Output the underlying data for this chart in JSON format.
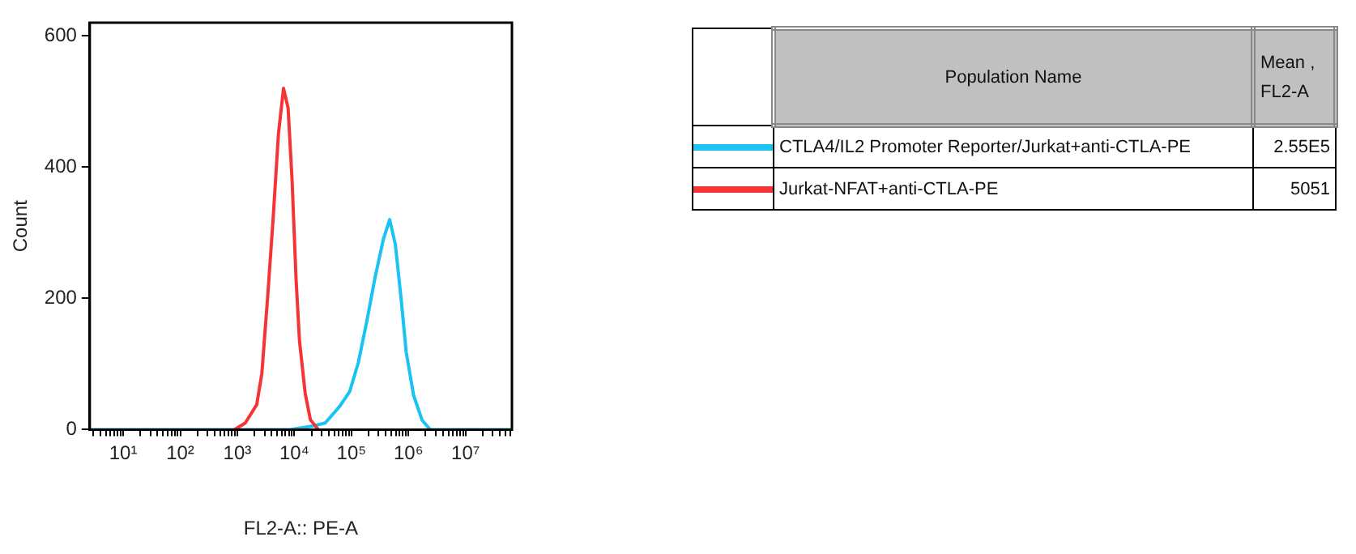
{
  "chart_data": {
    "type": "line",
    "xlabel": "FL2-A:: PE-A",
    "ylabel": "Count",
    "log": "x",
    "legend": "right",
    "marker": "none",
    "line_style": "solid",
    "xlim": [
      2.6,
      65000000
    ],
    "ylim": [
      0,
      620
    ],
    "xticks": [
      {
        "value": 10,
        "label": "10¹"
      },
      {
        "value": 100,
        "label": "10²"
      },
      {
        "value": 1000,
        "label": "10³"
      },
      {
        "value": 10000,
        "label": "10⁴"
      },
      {
        "value": 100000,
        "label": "10⁵"
      },
      {
        "value": 1000000,
        "label": "10⁶"
      },
      {
        "value": 10000000,
        "label": "10⁷"
      },
      {
        "value": 3,
        "label": null
      },
      {
        "value": 4,
        "label": null
      },
      {
        "value": 5,
        "label": null
      },
      {
        "value": 6,
        "label": null
      },
      {
        "value": 7,
        "label": null
      },
      {
        "value": 8,
        "label": null
      },
      {
        "value": 9,
        "label": null
      },
      {
        "value": 20,
        "label": null
      },
      {
        "value": 30,
        "label": null
      },
      {
        "value": 40,
        "label": null
      },
      {
        "value": 50,
        "label": null
      },
      {
        "value": 60,
        "label": null
      },
      {
        "value": 70,
        "label": null
      },
      {
        "value": 80,
        "label": null
      },
      {
        "value": 90,
        "label": null
      },
      {
        "value": 200,
        "label": null
      },
      {
        "value": 300,
        "label": null
      },
      {
        "value": 400,
        "label": null
      },
      {
        "value": 500,
        "label": null
      },
      {
        "value": 600,
        "label": null
      },
      {
        "value": 700,
        "label": null
      },
      {
        "value": 800,
        "label": null
      },
      {
        "value": 900,
        "label": null
      },
      {
        "value": 2000,
        "label": null
      },
      {
        "value": 3000,
        "label": null
      },
      {
        "value": 4000,
        "label": null
      },
      {
        "value": 5000,
        "label": null
      },
      {
        "value": 6000,
        "label": null
      },
      {
        "value": 7000,
        "label": null
      },
      {
        "value": 8000,
        "label": null
      },
      {
        "value": 9000,
        "label": null
      },
      {
        "value": 20000,
        "label": null
      },
      {
        "value": 30000,
        "label": null
      },
      {
        "value": 40000,
        "label": null
      },
      {
        "value": 50000,
        "label": null
      },
      {
        "value": 60000,
        "label": null
      },
      {
        "value": 70000,
        "label": null
      },
      {
        "value": 80000,
        "label": null
      },
      {
        "value": 90000,
        "label": null
      },
      {
        "value": 200000,
        "label": null
      },
      {
        "value": 300000,
        "label": null
      },
      {
        "value": 400000,
        "label": null
      },
      {
        "value": 500000,
        "label": null
      },
      {
        "value": 600000,
        "label": null
      },
      {
        "value": 700000,
        "label": null
      },
      {
        "value": 800000,
        "label": null
      },
      {
        "value": 900000,
        "label": null
      },
      {
        "value": 2000000,
        "label": null
      },
      {
        "value": 3000000,
        "label": null
      },
      {
        "value": 4000000,
        "label": null
      },
      {
        "value": 5000000,
        "label": null
      },
      {
        "value": 6000000,
        "label": null
      },
      {
        "value": 7000000,
        "label": null
      },
      {
        "value": 8000000,
        "label": null
      },
      {
        "value": 9000000,
        "label": null
      },
      {
        "value": 20000000,
        "label": null
      },
      {
        "value": 30000000,
        "label": null
      },
      {
        "value": 40000000,
        "label": null
      },
      {
        "value": 50000000,
        "label": null
      },
      {
        "value": 60000000,
        "label": null
      }
    ],
    "yticks": [
      0,
      200,
      400,
      600
    ],
    "series": [
      {
        "name": "CTLA4/IL2 Promoter Reporter/Jurkat+anti-CTLA-PE",
        "color": "#19c3f2",
        "x": [
          2.6,
          8320,
          20000,
          34700,
          61700,
          93300,
          132000,
          186000,
          257000,
          363000,
          468000,
          589000,
          741000,
          912000,
          1230000,
          1740000,
          2400000,
          65000000
        ],
        "values": [
          0,
          0,
          5,
          10,
          35,
          58,
          102,
          165,
          230,
          290,
          320,
          282,
          200,
          118,
          52,
          14,
          0,
          0
        ]
      },
      {
        "name": "Jurkat-NFAT+anti-CTLA-PE",
        "color": "#f53535",
        "x": [
          891,
          1380,
          2190,
          2690,
          3390,
          4270,
          5250,
          6460,
          7760,
          9120,
          10700,
          12300,
          15500,
          19100,
          26300
        ],
        "values": [
          0,
          10,
          38,
          85,
          200,
          325,
          450,
          520,
          490,
          380,
          230,
          135,
          55,
          15,
          0
        ]
      }
    ],
    "annotations": [
      "Population Name",
      "Mean , FL2-A",
      "2.55E5",
      "5051"
    ]
  }
}
